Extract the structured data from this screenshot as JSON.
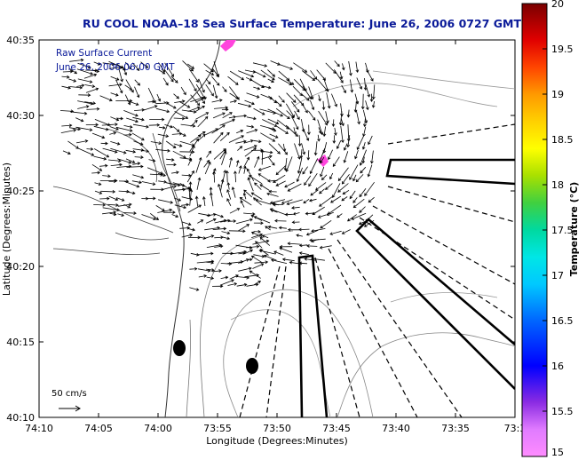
{
  "title": "RU COOL   NOAA–18  Sea Surface Temperature:  June 26, 2006 0727 GMT",
  "annotation": {
    "line1": "Raw Surface Current",
    "line2": "June 26, 2006 06:00 GMT"
  },
  "scale_label": "50 cm/s",
  "axes": {
    "xlabel": "Longitude (Degrees:Minutes)",
    "ylabel": "Latitude (Degrees:Minutes)",
    "x_ticks": [
      "74:10",
      "74:05",
      "74:00",
      "73:55",
      "73:50",
      "73:45",
      "73:40",
      "73:35",
      "73:3"
    ],
    "y_ticks": [
      "40:35",
      "40:30",
      "40:25",
      "40:20",
      "40:15",
      "40:10"
    ]
  },
  "colorbar": {
    "label": "Temperature (°C)",
    "ticks": [
      "20",
      "19.5",
      "19",
      "18.5",
      "18",
      "17.5",
      "17",
      "16.5",
      "16",
      "15.5",
      "15"
    ],
    "range": [
      15,
      20
    ],
    "colors": [
      "#ff8cff",
      "#e07bff",
      "#8a2be2",
      "#0000ff",
      "#0055ff",
      "#00b0ff",
      "#00e6e6",
      "#00d9a0",
      "#40d040",
      "#a8e000",
      "#ffff00",
      "#ffd000",
      "#ff9900",
      "#ff5500",
      "#ff0000",
      "#d40000",
      "#9a0000",
      "#7a0000"
    ]
  }
}
